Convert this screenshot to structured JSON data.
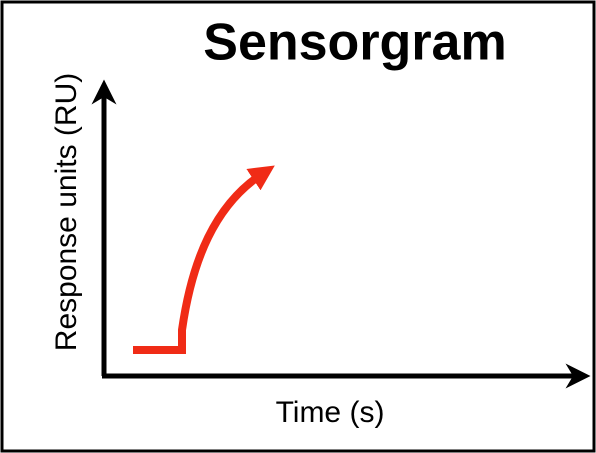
{
  "title": "Sensorgram",
  "x_axis_label": "Time (s)",
  "y_axis_label": "Response units (RU)"
}
